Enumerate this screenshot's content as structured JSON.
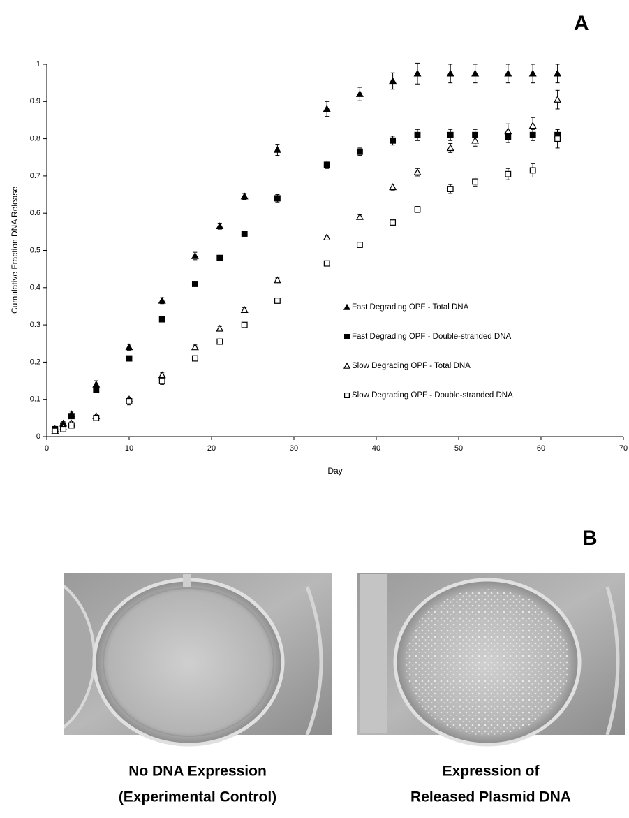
{
  "figure": {
    "panel_a_label": "A",
    "panel_b_label": "B",
    "photos": [
      {
        "caption": [
          "No DNA Expression",
          "(Experimental Control)"
        ]
      },
      {
        "caption": [
          "Expression of",
          "Released Plasmid DNA"
        ]
      }
    ]
  },
  "chart_data": {
    "type": "scatter",
    "x_label": "Day",
    "y_label": "Cumulative Fraction DNA Release",
    "xlim": [
      0,
      70
    ],
    "ylim": [
      0,
      1
    ],
    "xticks": [
      0,
      10,
      20,
      30,
      40,
      50,
      60,
      70
    ],
    "yticks": [
      0,
      0.1,
      0.2,
      0.3,
      0.4,
      0.5,
      0.6,
      0.7,
      0.8,
      0.9,
      1
    ],
    "grid": false,
    "legend": "right",
    "x": [
      1,
      2,
      3,
      6,
      10,
      14,
      18,
      21,
      24,
      28,
      34,
      38,
      42,
      45,
      49,
      52,
      56,
      59,
      62
    ],
    "series": [
      {
        "name": "Fast Degrading OPF - Total DNA",
        "color": "#000000",
        "marker": "triangle",
        "filled": true,
        "values": [
          0.02,
          0.035,
          0.06,
          0.14,
          0.24,
          0.365,
          0.485,
          0.565,
          0.645,
          0.77,
          0.88,
          0.92,
          0.955,
          0.975,
          0.975,
          0.975,
          0.975,
          0.975,
          0.975
        ],
        "errors": [
          0.005,
          0.005,
          0.008,
          0.01,
          0.008,
          0.008,
          0.01,
          0.008,
          0.008,
          0.015,
          0.02,
          0.018,
          0.022,
          0.028,
          0.025,
          0.025,
          0.025,
          0.025,
          0.025
        ]
      },
      {
        "name": "Fast Degrading OPF - Double-stranded DNA",
        "color": "#000000",
        "marker": "square",
        "filled": true,
        "values": [
          0.02,
          0.03,
          0.055,
          0.125,
          0.21,
          0.315,
          0.41,
          0.48,
          0.545,
          0.64,
          0.73,
          0.765,
          0.795,
          0.81,
          0.81,
          0.81,
          0.805,
          0.81,
          0.81
        ],
        "errors": [
          0.004,
          0.004,
          0.005,
          0.006,
          0.005,
          0.005,
          0.005,
          0.005,
          0.005,
          0.01,
          0.01,
          0.01,
          0.012,
          0.015,
          0.015,
          0.015,
          0.015,
          0.015,
          0.015
        ]
      },
      {
        "name": "Slow Degrading OPF - Total DNA",
        "color": "#000000",
        "marker": "triangle",
        "filled": false,
        "values": [
          0.015,
          0.025,
          0.035,
          0.055,
          0.1,
          0.165,
          0.24,
          0.29,
          0.34,
          0.42,
          0.535,
          0.59,
          0.67,
          0.71,
          0.775,
          0.795,
          0.82,
          0.835,
          0.905
        ],
        "errors": [
          0.004,
          0.004,
          0.005,
          0.006,
          0.006,
          0.006,
          0.006,
          0.006,
          0.006,
          0.006,
          0.006,
          0.006,
          0.008,
          0.01,
          0.012,
          0.015,
          0.02,
          0.022,
          0.025
        ]
      },
      {
        "name": "Slow Degrading OPF - Double-stranded DNA",
        "color": "#000000",
        "marker": "square",
        "filled": false,
        "values": [
          0.015,
          0.02,
          0.03,
          0.05,
          0.095,
          0.15,
          0.21,
          0.255,
          0.3,
          0.365,
          0.465,
          0.515,
          0.575,
          0.61,
          0.665,
          0.685,
          0.705,
          0.715,
          0.8
        ],
        "errors": [
          0.004,
          0.004,
          0.005,
          0.006,
          0.01,
          0.01,
          0.006,
          0.006,
          0.006,
          0.006,
          0.006,
          0.006,
          0.006,
          0.008,
          0.012,
          0.012,
          0.015,
          0.018,
          0.025
        ]
      }
    ]
  }
}
